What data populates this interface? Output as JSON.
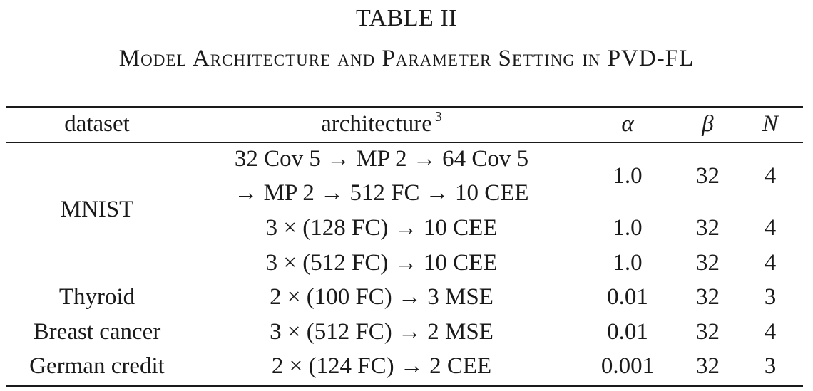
{
  "table": {
    "label": "TABLE II",
    "caption": "Model Architecture and Parameter Setting in PVD-FL",
    "headers": {
      "dataset": "dataset",
      "architecture": "architecture",
      "architecture_footnote": "3",
      "alpha": "α",
      "beta": "β",
      "n": "N"
    },
    "rows": [
      {
        "architecture_lines": [
          "32 Cov 5 → MP 2 → 64 Cov 5",
          "→ MP 2 → 512 FC → 10 CEE"
        ],
        "alpha": "1.0",
        "beta": "32",
        "n": "4"
      },
      {
        "architecture": "3 × (128 FC) → 10 CEE",
        "alpha": "1.0",
        "beta": "32",
        "n": "4"
      },
      {
        "architecture": "3 × (512 FC) → 10 CEE",
        "alpha": "1.0",
        "beta": "32",
        "n": "4"
      },
      {
        "dataset": "Thyroid",
        "architecture": "2 × (100 FC) → 3 MSE",
        "alpha": "0.01",
        "beta": "32",
        "n": "3"
      },
      {
        "dataset": "Breast cancer",
        "architecture": "3 × (512 FC) → 2 MSE",
        "alpha": "0.01",
        "beta": "32",
        "n": "4"
      },
      {
        "dataset": "German credit",
        "architecture": "2 × (124 FC) → 2 CEE",
        "alpha": "0.001",
        "beta": "32",
        "n": "3"
      }
    ],
    "mnist_group_label": "MNIST"
  }
}
